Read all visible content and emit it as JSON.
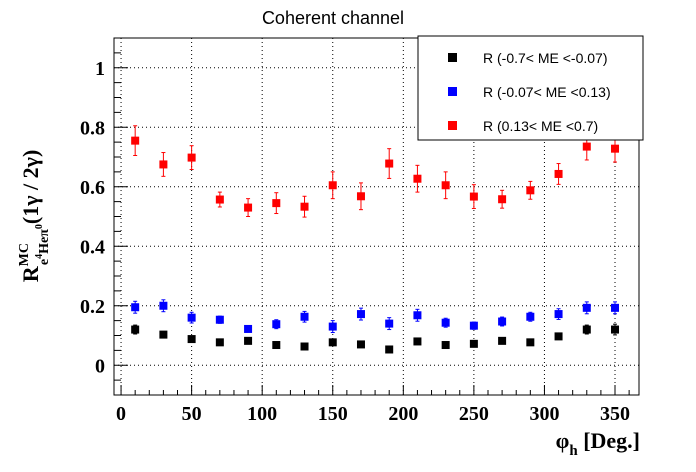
{
  "chart_data": {
    "type": "scatter",
    "title": "Coherent channel",
    "xlabel": {
      "base": "φ",
      "sub": "h",
      "rest": " [Deg.]"
    },
    "ylabel": {
      "base": "R",
      "sup": "MC",
      "sub1": "e",
      "sup2": "4",
      "sub2": "He",
      "sub3": "π",
      "sup3": "0",
      "rest": "(1γ / 2γ)"
    },
    "xlim": [
      -5,
      367
    ],
    "ylim": [
      -0.1,
      1.1
    ],
    "x_ticks": [
      "0",
      "50",
      "100",
      "150",
      "200",
      "250",
      "300",
      "350"
    ],
    "y_ticks": [
      "0",
      "0.2",
      "0.4",
      "0.6",
      "0.8",
      "1"
    ],
    "x_tick_values": [
      0,
      50,
      100,
      150,
      200,
      250,
      300,
      350
    ],
    "y_tick_values": [
      0,
      0.2,
      0.4,
      0.6,
      0.8,
      1.0
    ],
    "grid": true,
    "legend_position": "top-right",
    "x": [
      10,
      30,
      50,
      70,
      90,
      110,
      130,
      150,
      170,
      190,
      210,
      230,
      250,
      270,
      290,
      310,
      330,
      350
    ],
    "series": [
      {
        "name": "R (-0.7< ME <-0.07)",
        "color": "#000000",
        "y": [
          0.12,
          0.103,
          0.088,
          0.077,
          0.082,
          0.068,
          0.063,
          0.077,
          0.07,
          0.053,
          0.08,
          0.068,
          0.072,
          0.082,
          0.077,
          0.097,
          0.12,
          0.12
        ],
        "err": [
          0.015,
          0.01,
          0.01,
          0.008,
          0.008,
          0.008,
          0.008,
          0.008,
          0.008,
          0.008,
          0.008,
          0.008,
          0.008,
          0.008,
          0.008,
          0.01,
          0.015,
          0.018
        ]
      },
      {
        "name": "R (-0.07< ME <0.13)",
        "color": "#0000ff",
        "y": [
          0.195,
          0.2,
          0.16,
          0.153,
          0.122,
          0.138,
          0.163,
          0.13,
          0.172,
          0.14,
          0.168,
          0.143,
          0.133,
          0.147,
          0.163,
          0.172,
          0.193,
          0.193
        ],
        "err": [
          0.02,
          0.02,
          0.018,
          0.012,
          0.01,
          0.015,
          0.018,
          0.02,
          0.02,
          0.02,
          0.02,
          0.015,
          0.012,
          0.015,
          0.015,
          0.018,
          0.02,
          0.02
        ]
      },
      {
        "name": "R (0.13< ME <0.7)",
        "color": "#ff0000",
        "y": [
          0.755,
          0.675,
          0.698,
          0.557,
          0.53,
          0.545,
          0.533,
          0.605,
          0.568,
          0.678,
          0.627,
          0.605,
          0.567,
          0.558,
          0.588,
          0.643,
          0.735,
          0.728
        ],
        "err": [
          0.05,
          0.04,
          0.04,
          0.025,
          0.03,
          0.035,
          0.035,
          0.045,
          0.045,
          0.05,
          0.045,
          0.045,
          0.04,
          0.03,
          0.03,
          0.035,
          0.045,
          0.045
        ]
      }
    ]
  }
}
